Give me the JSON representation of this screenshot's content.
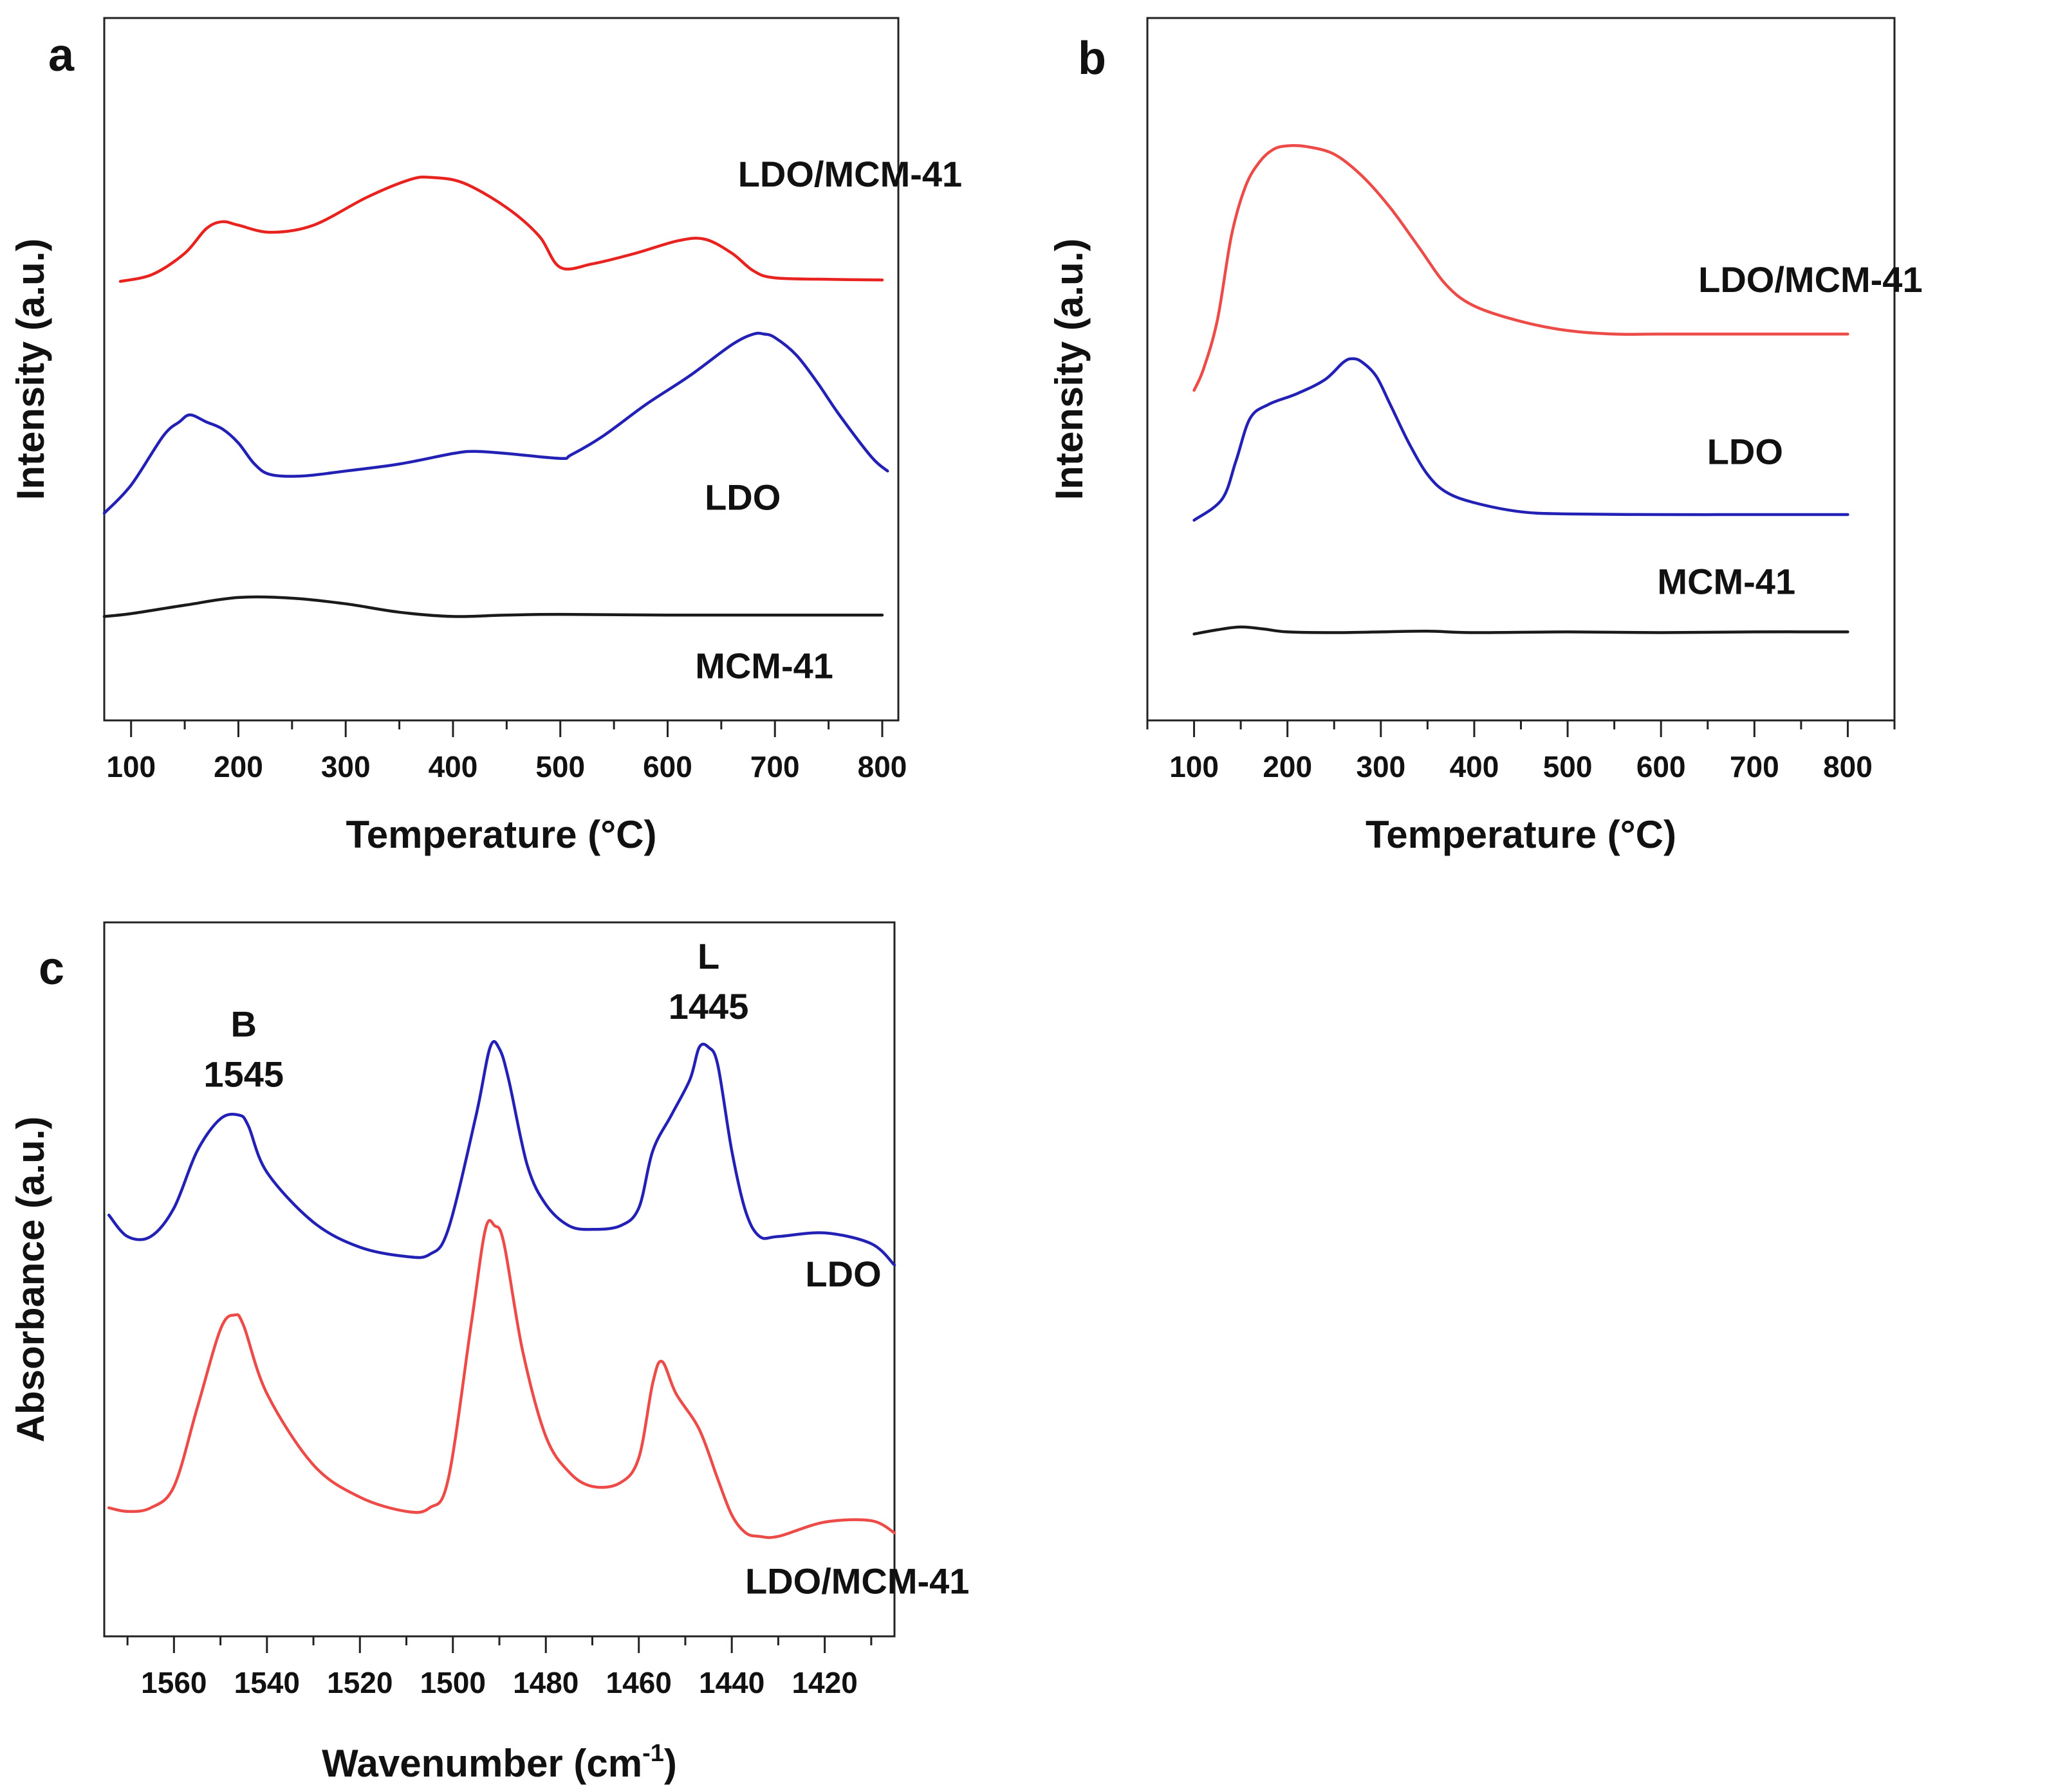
{
  "chart_data": [
    {
      "id": "a",
      "type": "line",
      "panel_label": "a",
      "xlabel": "Temperature (°C)",
      "ylabel": "Intensity (a.u.)",
      "xlim": [
        75,
        815
      ],
      "ylim": [
        0,
        100
      ],
      "x_ticks": [
        100,
        200,
        300,
        400,
        500,
        600,
        700,
        800
      ],
      "x_reversed": false,
      "series": [
        {
          "name": "LDO/MCM-41",
          "color": "#e8231f",
          "x": [
            90,
            120,
            150,
            170,
            185,
            200,
            230,
            270,
            320,
            360,
            380,
            410,
            450,
            480,
            500,
            530,
            570,
            610,
            635,
            660,
            680,
            700,
            750,
            800
          ],
          "values": [
            62.5,
            63.5,
            66.5,
            70,
            71,
            70.5,
            69.5,
            70.5,
            74.5,
            77,
            77.3,
            76.5,
            73,
            69,
            64.5,
            65,
            66.5,
            68.3,
            68.5,
            66.5,
            64,
            63,
            62.8,
            62.7
          ]
        },
        {
          "name": "LDO",
          "color": "#2321b5",
          "x": [
            75,
            100,
            130,
            145,
            155,
            170,
            185,
            200,
            215,
            230,
            260,
            300,
            350,
            400,
            420,
            450,
            500,
            510,
            540,
            580,
            620,
            660,
            680,
            690,
            700,
            720,
            740,
            760,
            790,
            805
          ],
          "values": [
            29.5,
            33.5,
            40.5,
            42.5,
            43.5,
            42.5,
            41.5,
            39.5,
            36.5,
            35,
            34.8,
            35.5,
            36.5,
            38,
            38.3,
            38,
            37.3,
            37.8,
            40.5,
            45,
            49,
            53.5,
            55,
            55,
            54.5,
            52,
            48,
            43.5,
            37.5,
            35.5
          ]
        },
        {
          "name": "MCM-41",
          "color": "#1a1a1a",
          "x": [
            75,
            100,
            150,
            200,
            250,
            300,
            350,
            400,
            450,
            500,
            600,
            700,
            800
          ],
          "values": [
            14.8,
            15.2,
            16.4,
            17.5,
            17.4,
            16.6,
            15.4,
            14.8,
            15,
            15.1,
            15,
            15,
            15
          ]
        }
      ],
      "series_labels": [
        {
          "series": "LDO/MCM-41",
          "text": "LDO/MCM-41",
          "x": 770,
          "y": 76
        },
        {
          "series": "LDO",
          "text": "LDO",
          "x": 670,
          "y": 30
        },
        {
          "series": "MCM-41",
          "text": "MCM-41",
          "x": 690,
          "y": 6
        }
      ]
    },
    {
      "id": "b",
      "type": "line",
      "panel_label": "b",
      "xlabel": "Temperature (°C)",
      "ylabel": "Intensity (a.u.)",
      "xlim": [
        50,
        850
      ],
      "ylim": [
        0,
        100
      ],
      "x_ticks": [
        100,
        200,
        300,
        400,
        500,
        600,
        700,
        800
      ],
      "x_reversed": false,
      "series": [
        {
          "name": "LDO/MCM-41",
          "color": "#ec4b48",
          "x": [
            100,
            110,
            125,
            140,
            155,
            170,
            185,
            200,
            220,
            250,
            280,
            310,
            340,
            370,
            400,
            450,
            500,
            550,
            600,
            700,
            800
          ],
          "values": [
            47,
            50,
            57,
            69,
            76,
            79.5,
            81.3,
            81.8,
            81.7,
            80.6,
            77.5,
            73,
            67.5,
            62,
            59,
            56.8,
            55.5,
            55,
            55,
            55,
            55
          ]
        },
        {
          "name": "LDO",
          "color": "#2321b5",
          "x": [
            100,
            130,
            145,
            160,
            180,
            210,
            240,
            260,
            270,
            280,
            295,
            310,
            330,
            350,
            370,
            400,
            450,
            500,
            600,
            700,
            800
          ],
          "values": [
            28.5,
            31.5,
            37,
            43,
            45,
            46.5,
            48.5,
            51,
            51.5,
            51,
            49,
            45,
            39.5,
            35,
            32.5,
            31,
            29.7,
            29.4,
            29.3,
            29.3,
            29.3
          ]
        },
        {
          "name": "MCM-41",
          "color": "#1a1a1a",
          "x": [
            100,
            125,
            150,
            175,
            200,
            250,
            300,
            350,
            400,
            500,
            600,
            700,
            800
          ],
          "values": [
            12.3,
            12.9,
            13.3,
            13,
            12.6,
            12.5,
            12.6,
            12.7,
            12.5,
            12.6,
            12.5,
            12.6,
            12.6
          ]
        }
      ],
      "series_labels": [
        {
          "series": "LDO/MCM-41",
          "text": "LDO/MCM-41",
          "x": 760,
          "y": 61
        },
        {
          "series": "LDO",
          "text": "LDO",
          "x": 690,
          "y": 36.5
        },
        {
          "series": "MCM-41",
          "text": "MCM-41",
          "x": 670,
          "y": 18
        }
      ]
    },
    {
      "id": "c",
      "type": "line",
      "panel_label": "c",
      "xlabel": "Wavenumber (cm",
      "xlabel_superscript": "-1",
      "xlabel_suffix": ")",
      "ylabel": "Absorbance (a.u.)",
      "xlim": [
        1575,
        1405
      ],
      "ylim": [
        0,
        100
      ],
      "x_ticks": [
        1560,
        1540,
        1520,
        1500,
        1480,
        1460,
        1440,
        1420
      ],
      "x_reversed": true,
      "series": [
        {
          "name": "LDO",
          "color": "#2321b5",
          "x": [
            1574,
            1570,
            1565,
            1560,
            1555,
            1550,
            1546,
            1544,
            1540,
            1530,
            1520,
            1510,
            1505,
            1501,
            1495,
            1492,
            1490,
            1488,
            1484,
            1480,
            1475,
            1470,
            1464,
            1460,
            1457,
            1453,
            1449,
            1447,
            1445,
            1443,
            1440,
            1437,
            1434,
            1430,
            1420,
            1410,
            1405
          ],
          "values": [
            59,
            56,
            56,
            60,
            68,
            72.5,
            73,
            71.5,
            65,
            58,
            54.5,
            53.2,
            53.5,
            57,
            73,
            82.5,
            82.3,
            78,
            66,
            60.5,
            57.5,
            57,
            57.5,
            60,
            68,
            73,
            78,
            82.5,
            82.5,
            80,
            68,
            59.5,
            56,
            56,
            56.5,
            55,
            52
          ]
        },
        {
          "name": "LDO/MCM-41",
          "color": "#ec4b48",
          "x": [
            1574,
            1570,
            1565,
            1560,
            1555,
            1550,
            1547,
            1545,
            1540,
            1530,
            1520,
            1510,
            1505,
            1501,
            1496,
            1493,
            1491,
            1489,
            1485,
            1480,
            1475,
            1470,
            1464,
            1460,
            1457,
            1455,
            1452,
            1447,
            1443,
            1440,
            1437,
            1434,
            1430,
            1420,
            1410,
            1405
          ],
          "values": [
            18,
            17.5,
            18,
            21,
            32,
            43,
            45,
            43.5,
            34,
            24,
            19.5,
            17.5,
            18,
            22,
            44,
            57,
            57.5,
            55,
            40,
            28,
            23,
            21,
            21.5,
            25,
            35.5,
            38.5,
            34,
            29,
            22,
            17,
            14.5,
            14,
            14,
            16,
            16.2,
            14.5
          ]
        }
      ],
      "series_labels": [
        {
          "series": "LDO",
          "text": "LDO",
          "x": 1416,
          "y": 49
        },
        {
          "series": "LDO/MCM-41",
          "text": "LDO/MCM-41",
          "x": 1413,
          "y": 6
        }
      ],
      "annotations": [
        {
          "text": "B",
          "x": 1545,
          "y": 84
        },
        {
          "text": "1545",
          "x": 1545,
          "y": 77
        },
        {
          "text": "L",
          "x": 1445,
          "y": 93.5
        },
        {
          "text": "1445",
          "x": 1445,
          "y": 86.5
        }
      ]
    }
  ]
}
